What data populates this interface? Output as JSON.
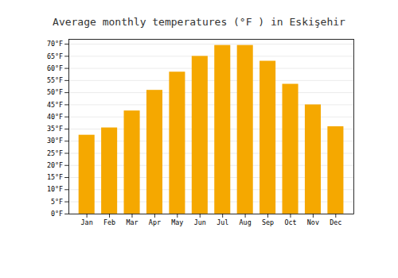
{
  "chart_data": {
    "type": "bar",
    "title": "Average monthly temperatures (°F ) in Eskişehir",
    "categories": [
      "Jan",
      "Feb",
      "Mar",
      "Apr",
      "May",
      "Jun",
      "Jul",
      "Aug",
      "Sep",
      "Oct",
      "Nov",
      "Dec"
    ],
    "values": [
      32.5,
      35.5,
      42.5,
      51.0,
      58.5,
      65.0,
      69.5,
      69.5,
      63.0,
      53.5,
      45.0,
      36.0
    ],
    "color": "#F5A800",
    "ylim": [
      0,
      72
    ],
    "yticks": [
      {
        "value": 0,
        "label": "0°F"
      },
      {
        "value": 5,
        "label": "5°F"
      },
      {
        "value": 10,
        "label": "10°F"
      },
      {
        "value": 15,
        "label": "15°F"
      },
      {
        "value": 20,
        "label": "20°F"
      },
      {
        "value": 25,
        "label": "25°F"
      },
      {
        "value": 30,
        "label": "30°F"
      },
      {
        "value": 35,
        "label": "35°F"
      },
      {
        "value": 40,
        "label": "40°F"
      },
      {
        "value": 45,
        "label": "45°F"
      },
      {
        "value": 50,
        "label": "50°F"
      },
      {
        "value": 55,
        "label": "55°F"
      },
      {
        "value": 60,
        "label": "60°F"
      },
      {
        "value": 65,
        "label": "65°F"
      },
      {
        "value": 70,
        "label": "70°F"
      }
    ],
    "grid": true
  }
}
